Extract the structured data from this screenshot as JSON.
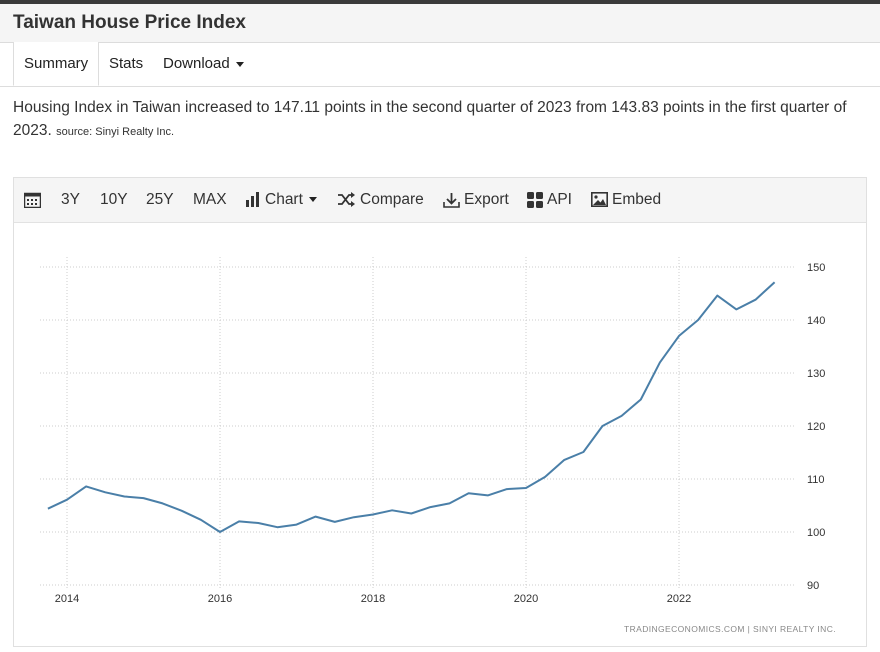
{
  "page": {
    "title": "Taiwan House Price Index"
  },
  "tabs": [
    {
      "label": "Summary",
      "active": true
    },
    {
      "label": "Stats",
      "active": false
    },
    {
      "label": "Download",
      "active": false
    }
  ],
  "description": {
    "text": "Housing Index in Taiwan increased to 147.11 points in the second quarter of 2023 from 143.83 points in the first quarter of 2023.",
    "source": "source: Sinyi Realty Inc."
  },
  "toolbar": {
    "calendar_icon": "calendar-icon",
    "range_3y": "3Y",
    "range_10y": "10Y",
    "range_25y": "25Y",
    "range_max": "MAX",
    "chart_label": "Chart",
    "compare_label": "Compare",
    "export_label": "Export",
    "api_label": "API",
    "embed_label": "Embed"
  },
  "watermark": "TRADINGECONOMICS.COM | SINYI REALTY INC.",
  "colors": {
    "line": "#4a7fa8",
    "grid": "#cccccc"
  },
  "chart_data": {
    "type": "line",
    "title": "",
    "xlabel": "",
    "ylabel": "",
    "x_ticks": [
      "2014",
      "2016",
      "2018",
      "2020",
      "2022"
    ],
    "y_ticks": [
      90,
      100,
      110,
      120,
      130,
      140,
      150
    ],
    "ylim": [
      90,
      150
    ],
    "xlim": [
      2014,
      2023.75
    ],
    "grid": "dotted horizontal and vertical",
    "axis_position": "right",
    "series": [
      {
        "x": [
          "2013-Q4",
          "2014-Q1",
          "2014-Q2",
          "2014-Q3",
          "2014-Q4",
          "2015-Q1",
          "2015-Q2",
          "2015-Q3",
          "2015-Q4",
          "2016-Q1",
          "2016-Q2",
          "2016-Q3",
          "2016-Q4",
          "2017-Q1",
          "2017-Q2",
          "2017-Q3",
          "2017-Q4",
          "2018-Q1",
          "2018-Q2",
          "2018-Q3",
          "2018-Q4",
          "2019-Q1",
          "2019-Q2",
          "2019-Q3",
          "2019-Q4",
          "2020-Q1",
          "2020-Q2",
          "2020-Q3",
          "2020-Q4",
          "2021-Q1",
          "2021-Q2",
          "2021-Q3",
          "2021-Q4",
          "2022-Q1",
          "2022-Q2",
          "2022-Q3",
          "2022-Q4",
          "2023-Q1",
          "2023-Q2"
        ],
        "values": [
          104.4,
          106.1,
          108.6,
          107.5,
          106.7,
          106.4,
          105.4,
          104.0,
          102.3,
          100.0,
          102.0,
          101.7,
          100.9,
          101.4,
          102.9,
          101.9,
          102.8,
          103.3,
          104.1,
          103.5,
          104.7,
          105.4,
          107.3,
          106.9,
          108.1,
          108.3,
          110.4,
          113.6,
          115.1,
          120.0,
          121.9,
          125.0,
          132.0,
          137.0,
          140.0,
          144.6,
          142.0,
          143.83,
          147.11
        ]
      }
    ]
  }
}
